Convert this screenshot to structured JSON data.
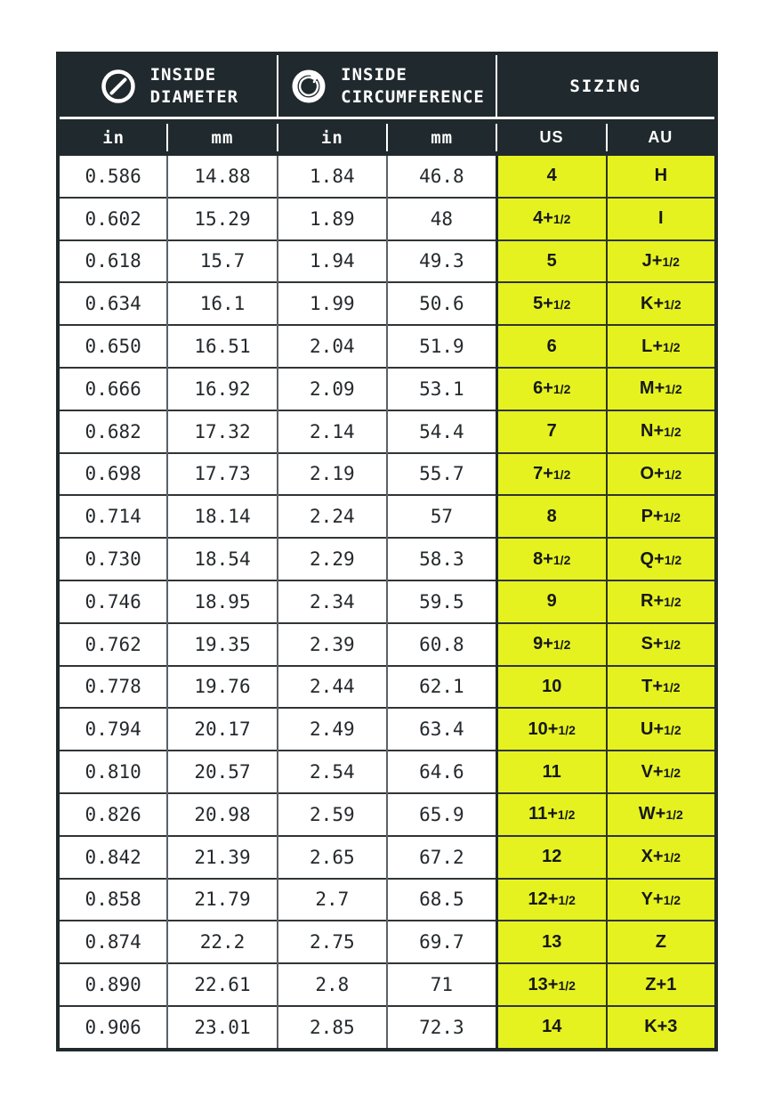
{
  "colors": {
    "header_bg": "#20292d",
    "header_text": "#ffffff",
    "accent_yellow": "#e5f220",
    "row_bg": "#ffffff",
    "grid_vertical": "#5c6165",
    "grid_horizontal": "#303436",
    "text_dark": "#24292c"
  },
  "icons": [
    {
      "name": "diameter-icon",
      "meaning": "circle with diagonal diameter line"
    },
    {
      "name": "circumference-icon",
      "meaning": "ring with circular arrow"
    }
  ],
  "chart_data": {
    "type": "table",
    "column_groups": [
      {
        "icon": "diameter-icon",
        "line1": "INSIDE",
        "line2": "DIAMETER"
      },
      {
        "icon": "circumference-icon",
        "line1": "INSIDE",
        "line2": "CIRCUMFERENCE"
      },
      {
        "label": "SIZING"
      }
    ],
    "columns": [
      "in",
      "mm",
      "in",
      "mm",
      "US",
      "AU"
    ],
    "rows": [
      [
        "0.586",
        "14.88",
        "1.84",
        "46.8",
        "4",
        "H"
      ],
      [
        "0.602",
        "15.29",
        "1.89",
        "48",
        "4+1/2",
        "I"
      ],
      [
        "0.618",
        "15.7",
        "1.94",
        "49.3",
        "5",
        "J+1/2"
      ],
      [
        "0.634",
        "16.1",
        "1.99",
        "50.6",
        "5+1/2",
        "K+1/2"
      ],
      [
        "0.650",
        "16.51",
        "2.04",
        "51.9",
        "6",
        "L+1/2"
      ],
      [
        "0.666",
        "16.92",
        "2.09",
        "53.1",
        "6+1/2",
        "M+1/2"
      ],
      [
        "0.682",
        "17.32",
        "2.14",
        "54.4",
        "7",
        "N+1/2"
      ],
      [
        "0.698",
        "17.73",
        "2.19",
        "55.7",
        "7+1/2",
        "O+1/2"
      ],
      [
        "0.714",
        "18.14",
        "2.24",
        "57",
        "8",
        "P+1/2"
      ],
      [
        "0.730",
        "18.54",
        "2.29",
        "58.3",
        "8+1/2",
        "Q+1/2"
      ],
      [
        "0.746",
        "18.95",
        "2.34",
        "59.5",
        "9",
        "R+1/2"
      ],
      [
        "0.762",
        "19.35",
        "2.39",
        "60.8",
        "9+1/2",
        "S+1/2"
      ],
      [
        "0.778",
        "19.76",
        "2.44",
        "62.1",
        "10",
        "T+1/2"
      ],
      [
        "0.794",
        "20.17",
        "2.49",
        "63.4",
        "10+1/2",
        "U+1/2"
      ],
      [
        "0.810",
        "20.57",
        "2.54",
        "64.6",
        "11",
        "V+1/2"
      ],
      [
        "0.826",
        "20.98",
        "2.59",
        "65.9",
        "11+1/2",
        "W+1/2"
      ],
      [
        "0.842",
        "21.39",
        "2.65",
        "67.2",
        "12",
        "X+1/2"
      ],
      [
        "0.858",
        "21.79",
        "2.7",
        "68.5",
        "12+1/2",
        "Y+1/2"
      ],
      [
        "0.874",
        "22.2",
        "2.75",
        "69.7",
        "13",
        "Z"
      ],
      [
        "0.890",
        "22.61",
        "2.8",
        "71",
        "13+1/2",
        "Z+1"
      ],
      [
        "0.906",
        "23.01",
        "2.85",
        "72.3",
        "14",
        "K+3"
      ]
    ]
  }
}
